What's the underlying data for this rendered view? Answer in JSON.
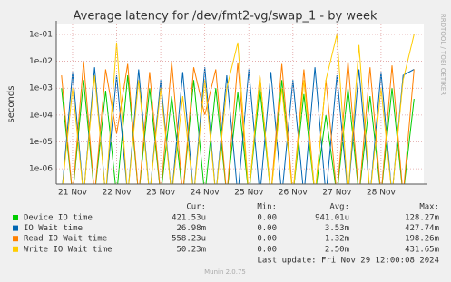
{
  "chart_data": {
    "type": "line",
    "title": "Average latency for /dev/fmt2-vg/swap_1 - by week",
    "ylabel": "seconds",
    "watermark": "RRDTOOL / TOBI OETIKER",
    "log_scale": true,
    "grid": true,
    "xlim": [
      20.63,
      28.97
    ],
    "xticks": [
      {
        "value": 21,
        "label": "21 Nov"
      },
      {
        "value": 22,
        "label": "22 Nov"
      },
      {
        "value": 23,
        "label": "23 Nov"
      },
      {
        "value": 24,
        "label": "24 Nov"
      },
      {
        "value": 25,
        "label": "25 Nov"
      },
      {
        "value": 26,
        "label": "26 Nov"
      },
      {
        "value": 27,
        "label": "27 Nov"
      },
      {
        "value": 28,
        "label": "28 Nov"
      }
    ],
    "ylim": [
      2.7e-07,
      0.234
    ],
    "yticks": [
      {
        "value": 1e-06,
        "label": "1e-06"
      },
      {
        "value": 1e-05,
        "label": "1e-05"
      },
      {
        "value": 0.0001,
        "label": "1e-04"
      },
      {
        "value": 0.001,
        "label": "1e-03"
      },
      {
        "value": 0.01,
        "label": "1e-02"
      },
      {
        "value": 0.1,
        "label": "1e-01"
      }
    ],
    "x": [
      20.75,
      21.0,
      21.25,
      21.5,
      21.75,
      22.0,
      22.25,
      22.5,
      22.75,
      23.0,
      23.25,
      23.5,
      23.75,
      24.0,
      24.25,
      24.5,
      24.75,
      25.0,
      25.25,
      25.5,
      25.75,
      26.0,
      26.25,
      26.5,
      26.75,
      27.0,
      27.25,
      27.5,
      27.75,
      28.0,
      28.25,
      28.5,
      28.75
    ],
    "series": [
      {
        "name": "Device IO time",
        "color": "#00cc00",
        "values": [
          0.001,
          1e-07,
          0.002,
          1e-07,
          0.0008,
          1e-07,
          0.003,
          1e-07,
          0.001,
          1e-07,
          0.0005,
          1e-07,
          0.002,
          1e-07,
          0.001,
          1e-07,
          0.0007,
          1e-07,
          0.001,
          1e-07,
          0.002,
          1e-07,
          0.0006,
          1e-07,
          0.0001,
          1e-07,
          0.001,
          1e-07,
          0.0005,
          1e-07,
          0.001,
          1e-07,
          0.0004
        ]
      },
      {
        "name": "IO Wait time",
        "color": "#0066b3",
        "values": [
          1e-07,
          0.004,
          1e-07,
          0.006,
          1e-07,
          0.003,
          1e-07,
          0.005,
          1e-07,
          0.002,
          1e-07,
          0.004,
          1e-07,
          0.006,
          1e-07,
          0.003,
          1e-07,
          0.005,
          1e-07,
          0.004,
          1e-07,
          0.002,
          1e-07,
          0.006,
          1e-07,
          0.003,
          1e-07,
          0.005,
          1e-07,
          0.004,
          1e-07,
          0.003,
          0.005
        ]
      },
      {
        "name": "Read IO Wait time",
        "color": "#ff8000",
        "values": [
          0.003,
          1e-07,
          0.01,
          1e-07,
          0.005,
          2e-05,
          0.008,
          1e-07,
          0.004,
          1e-07,
          0.01,
          1e-07,
          0.006,
          0.0001,
          0.005,
          1e-07,
          0.009,
          1e-07,
          0.003,
          1e-07,
          0.008,
          1e-07,
          0.005,
          1e-07,
          0.002,
          1e-07,
          0.01,
          1e-07,
          0.006,
          1e-07,
          0.007,
          1e-07,
          0.005
        ]
      },
      {
        "name": "Write IO Wait time",
        "color": "#ffcc00",
        "values": [
          1e-07,
          0.001,
          1e-07,
          0.003,
          1e-07,
          0.05,
          1e-07,
          0.002,
          1e-07,
          0.001,
          1e-07,
          0.0005,
          1e-07,
          0.002,
          1e-07,
          0.001,
          0.05,
          1e-07,
          0.003,
          1e-07,
          0.001,
          1e-07,
          0.002,
          1e-07,
          0.002,
          0.1,
          1e-07,
          0.04,
          1e-07,
          0.001,
          1e-07,
          0.002,
          0.1
        ]
      }
    ],
    "stat_headers": [
      "Cur:",
      "Min:",
      "Avg:",
      "Max:"
    ],
    "stats": [
      [
        "421.53u",
        "0.00",
        "941.01u",
        "128.27m"
      ],
      [
        "26.98m",
        "0.00",
        "3.53m",
        "427.74m"
      ],
      [
        "558.23u",
        "0.00",
        "1.32m",
        "198.26m"
      ],
      [
        "50.23m",
        "0.00",
        "2.50m",
        "431.65m"
      ]
    ],
    "last_update": "Last update: Fri Nov 29 12:00:08 2024",
    "footer": "Munin 2.0.75"
  }
}
